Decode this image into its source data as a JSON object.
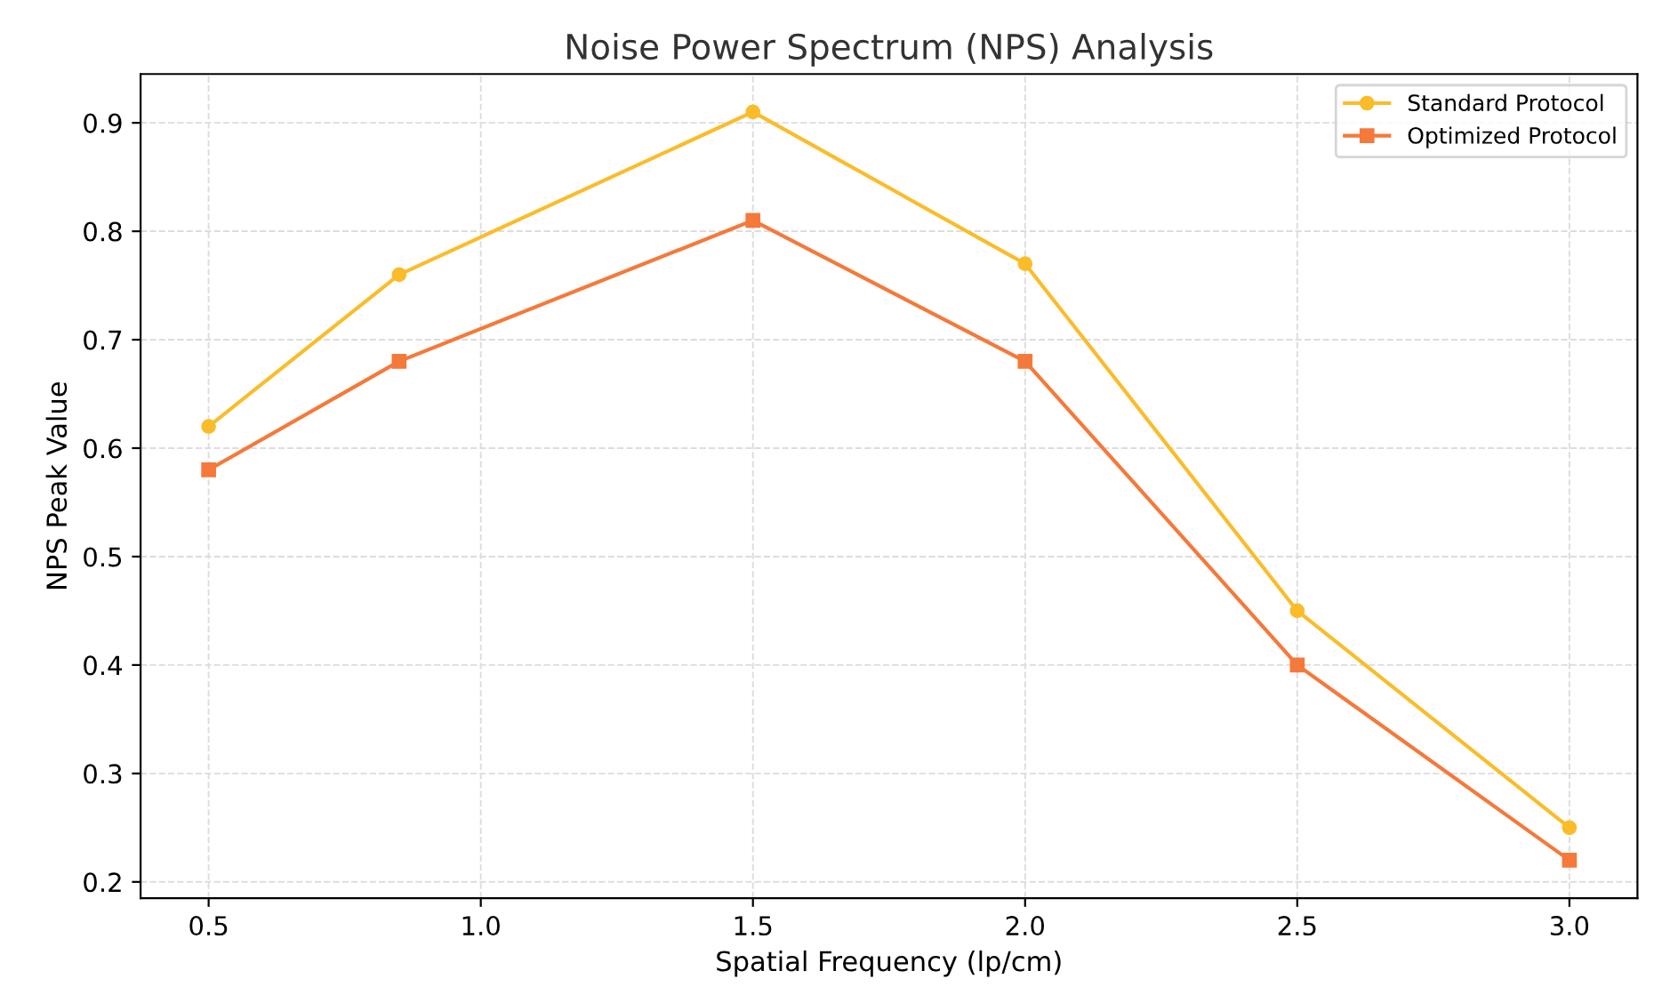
{
  "chart_data": {
    "type": "line",
    "title": "Noise Power Spectrum (NPS) Analysis",
    "xlabel": "Spatial Frequency (lp/cm)",
    "ylabel": "NPS Peak Value",
    "x": [
      0.5,
      0.85,
      1.5,
      2.0,
      2.5,
      3.0
    ],
    "series": [
      {
        "name": "Standard Protocol",
        "color": "#fbbc2a",
        "marker": "circle",
        "values": [
          0.62,
          0.76,
          0.91,
          0.77,
          0.45,
          0.25
        ]
      },
      {
        "name": "Optimized Protocol",
        "color": "#f5793a",
        "marker": "square",
        "values": [
          0.58,
          0.68,
          0.81,
          0.68,
          0.4,
          0.22
        ]
      }
    ],
    "xlim": [
      0.375,
      3.125
    ],
    "ylim": [
      0.185,
      0.945
    ],
    "xticks": [
      {
        "value": 0.5,
        "label": "0.5"
      },
      {
        "value": 1.0,
        "label": "1.0"
      },
      {
        "value": 1.5,
        "label": "1.5"
      },
      {
        "value": 2.0,
        "label": "2.0"
      },
      {
        "value": 2.5,
        "label": "2.5"
      },
      {
        "value": 3.0,
        "label": "3.0"
      }
    ],
    "yticks": [
      0.2,
      0.3,
      0.4,
      0.5,
      0.6,
      0.7,
      0.8,
      0.9
    ],
    "grid": true,
    "legend": "top right",
    "line_style": "solid"
  }
}
